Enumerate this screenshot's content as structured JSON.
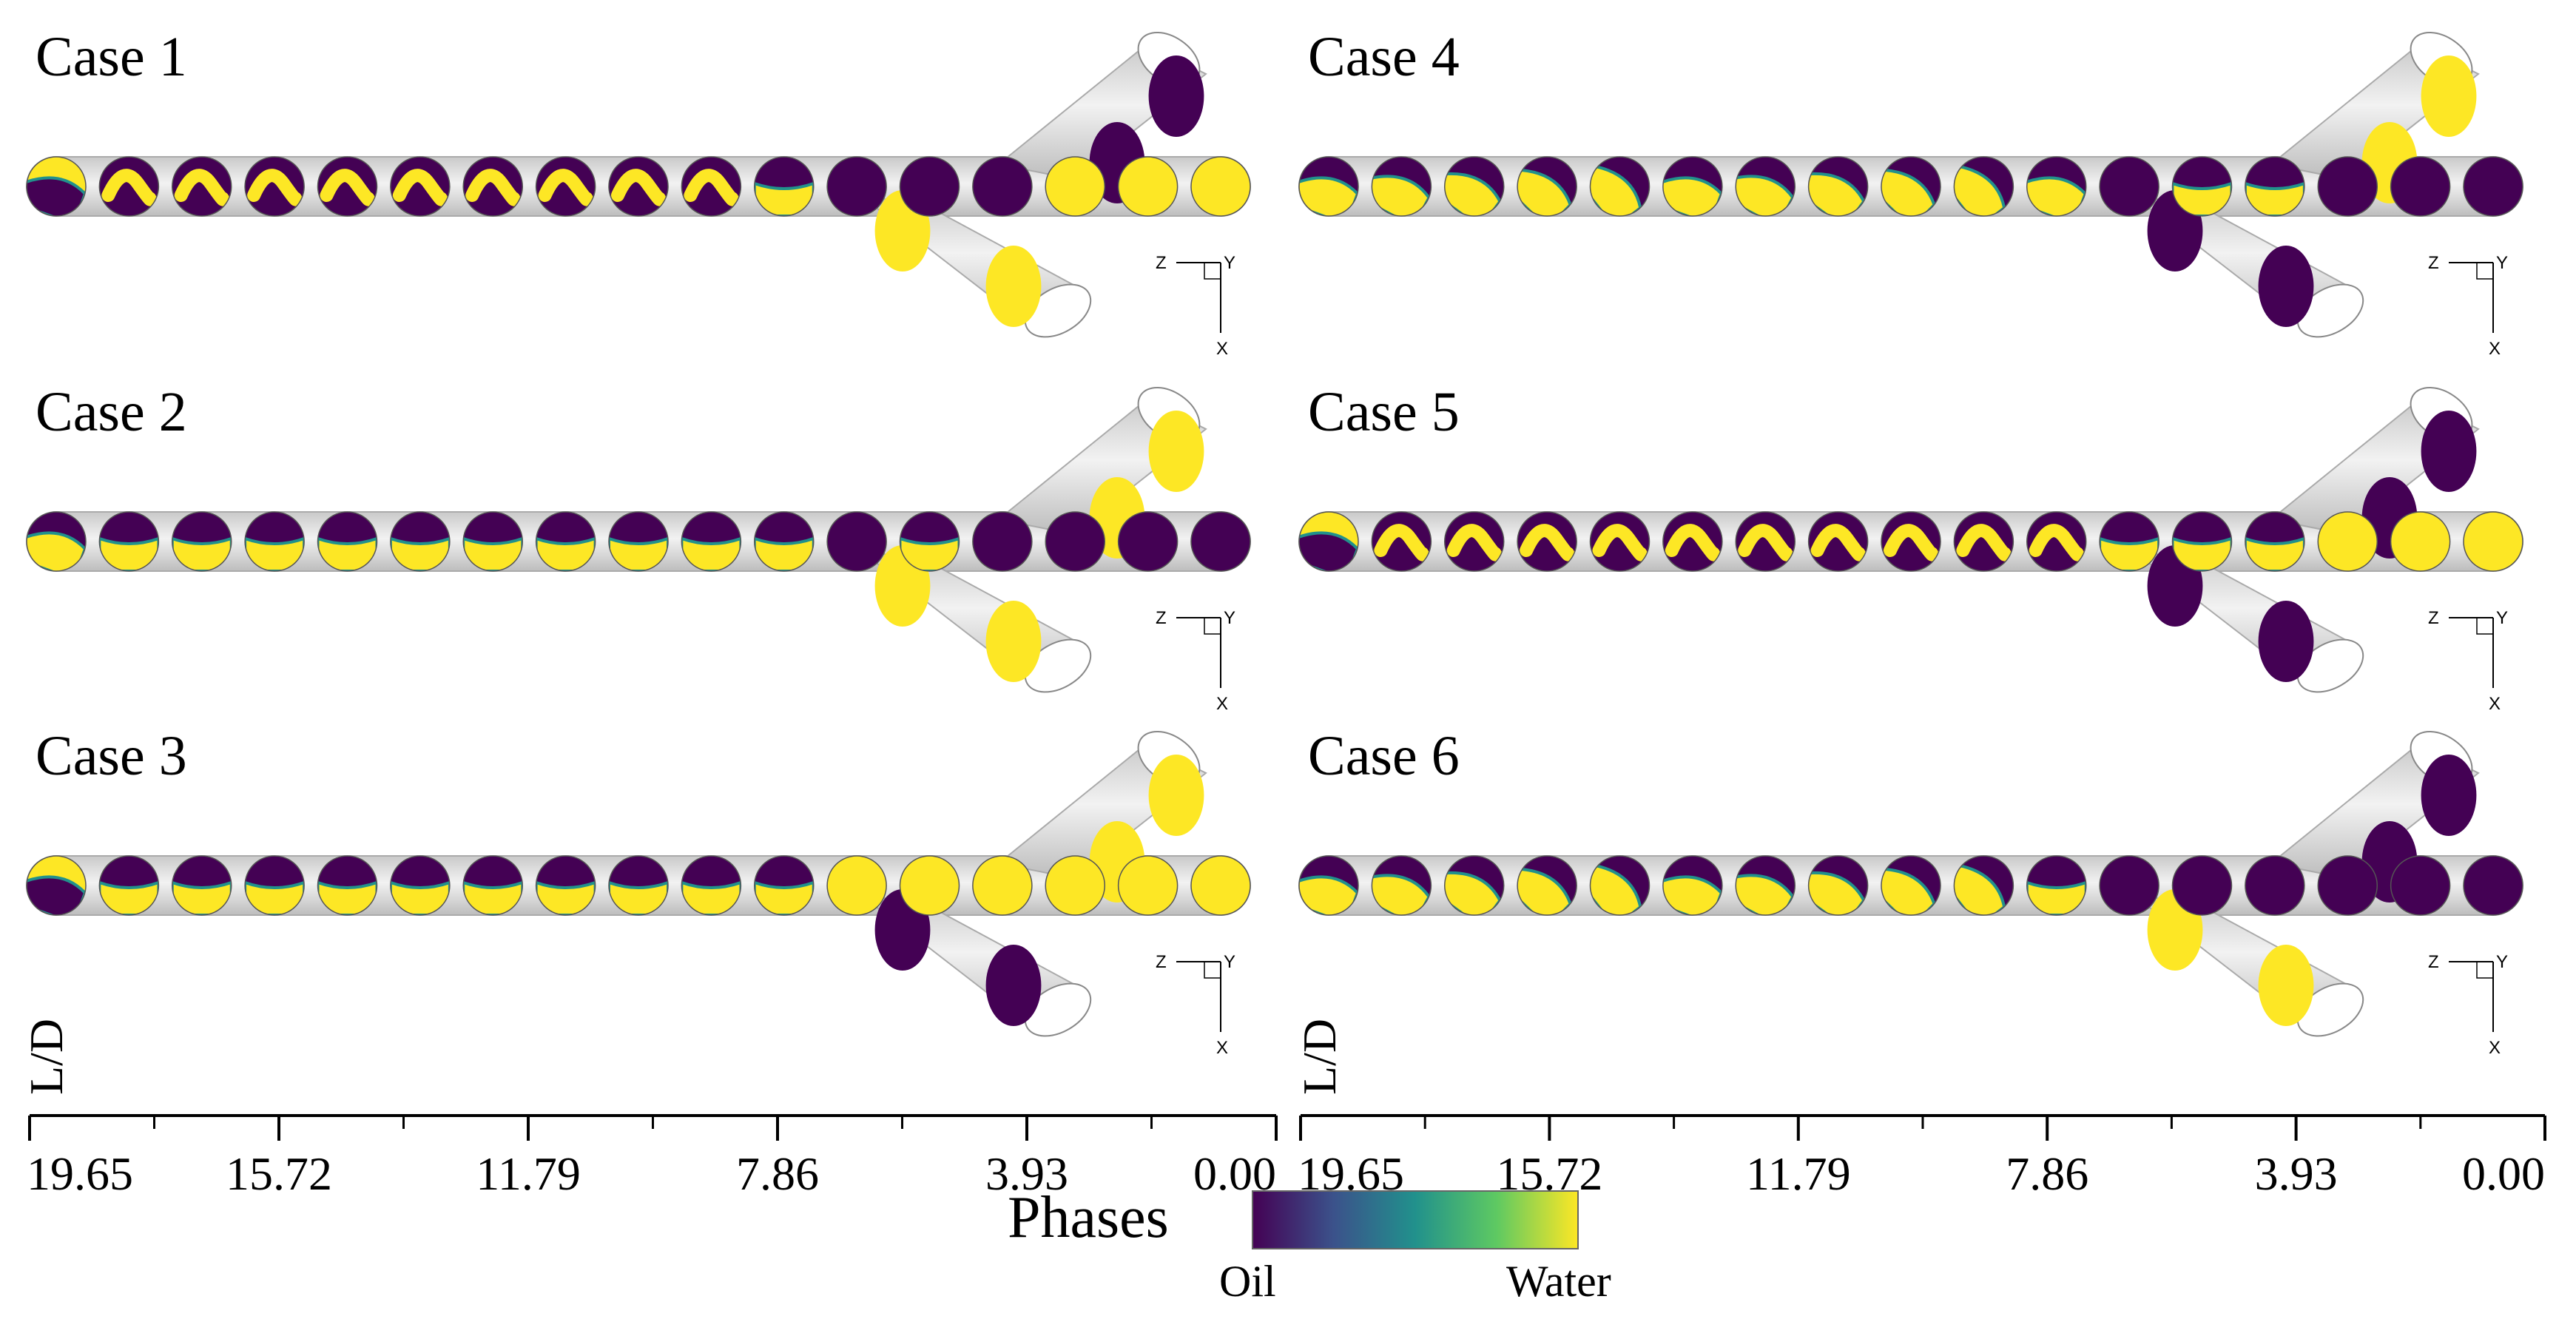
{
  "figure": {
    "phase_colors": {
      "oil": "#440154",
      "water": "#fde725",
      "interface": "#21918c",
      "pipe": "#d9d9d9"
    },
    "axis_title": "L/D",
    "tick_labels": [
      "19.65",
      "15.72",
      "11.79",
      "7.86",
      "3.93",
      "0.00"
    ],
    "legend": {
      "title": "Phases",
      "min_label": "Oil",
      "max_label": "Water"
    },
    "triad": {
      "z": "Z",
      "y": "Y",
      "x": "X"
    },
    "cases": [
      {
        "title": "Case 1",
        "branch_up_phases": [
          "oil",
          "oil"
        ],
        "branch_down_phases": [
          "water",
          "water"
        ],
        "phases": [
          "w-swirl",
          "o-wave",
          "o-wave",
          "o-wave",
          "o-wave",
          "o-wave",
          "o-wave",
          "o-wave",
          "o-wave",
          "o-wave",
          "o-cap",
          "oil",
          "oil",
          "oil",
          "water",
          "water",
          "water"
        ]
      },
      {
        "title": "Case 2",
        "branch_up_phases": [
          "water",
          "water"
        ],
        "branch_down_phases": [
          "water",
          "water"
        ],
        "phases": [
          "o-half",
          "o-cap",
          "o-cap",
          "o-cap",
          "o-cap",
          "o-cap",
          "o-cap",
          "o-cap",
          "o-cap",
          "o-cap",
          "o-cap",
          "oil",
          "o-cap",
          "oil",
          "oil",
          "oil",
          "oil"
        ]
      },
      {
        "title": "Case 3",
        "branch_up_phases": [
          "water",
          "water"
        ],
        "branch_down_phases": [
          "oil",
          "oil"
        ],
        "phases": [
          "w-swirl",
          "o-cap",
          "o-cap",
          "o-cap",
          "o-cap",
          "o-cap",
          "o-cap",
          "o-cap",
          "o-cap",
          "o-cap",
          "o-cap",
          "water",
          "water",
          "water",
          "water",
          "water",
          "water"
        ]
      },
      {
        "title": "Case 4",
        "branch_up_phases": [
          "water",
          "water"
        ],
        "branch_down_phases": [
          "oil",
          "oil"
        ],
        "phases": [
          "o-half",
          "o-half",
          "o-half",
          "o-half",
          "o-half",
          "o-half",
          "o-half",
          "o-half",
          "o-half",
          "o-half",
          "o-half",
          "oil",
          "o-cap",
          "o-cap",
          "oil",
          "oil",
          "oil"
        ]
      },
      {
        "title": "Case 5",
        "branch_up_phases": [
          "oil",
          "oil"
        ],
        "branch_down_phases": [
          "oil",
          "oil"
        ],
        "phases": [
          "w-swirl",
          "o-wave",
          "o-wave",
          "o-wave",
          "o-wave",
          "o-wave",
          "o-wave",
          "o-wave",
          "o-wave",
          "o-wave",
          "o-wave",
          "o-cap",
          "o-cap",
          "o-cap",
          "water",
          "water",
          "water"
        ]
      },
      {
        "title": "Case 6",
        "branch_up_phases": [
          "oil",
          "oil"
        ],
        "branch_down_phases": [
          "water",
          "water"
        ],
        "phases": [
          "o-half",
          "o-half",
          "o-half",
          "o-half",
          "o-half",
          "o-half",
          "o-half",
          "o-half",
          "o-half",
          "o-half",
          "o-cap",
          "oil",
          "oil",
          "oil",
          "oil",
          "oil",
          "oil"
        ]
      }
    ]
  }
}
